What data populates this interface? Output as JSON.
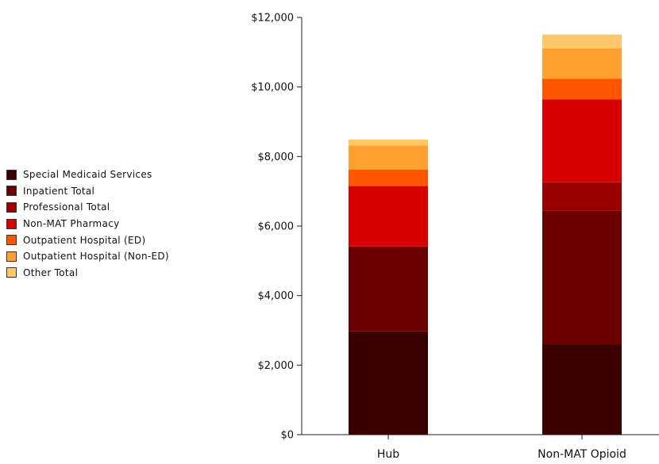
{
  "chart_data": {
    "type": "bar",
    "stacked": true,
    "categories": [
      "Hub",
      "Non-MAT Opioid"
    ],
    "series": [
      {
        "name": "Special Medicaid Services",
        "color": "#3a0000",
        "values": [
          2970,
          2600
        ]
      },
      {
        "name": "Inpatient Total",
        "color": "#6b0000",
        "values": [
          2440,
          3840
        ]
      },
      {
        "name": "Professional Total",
        "color": "#9b0000",
        "values": [
          0,
          820
        ]
      },
      {
        "name": "Non-MAT Pharmacy",
        "color": "#d60000",
        "values": [
          1740,
          2380
        ]
      },
      {
        "name": "Outpatient Hospital (ED)",
        "color": "#ff5500",
        "values": [
          470,
          600
        ]
      },
      {
        "name": "Outpatient Hospital (Non-ED)",
        "color": "#ffa02f",
        "values": [
          700,
          870
        ]
      },
      {
        "name": "Other Total",
        "color": "#ffc96b",
        "values": [
          170,
          400
        ]
      }
    ],
    "y_ticks": [
      "$0",
      "$2,000",
      "$4,000",
      "$6,000",
      "$8,000",
      "$10,000",
      "$12,000"
    ],
    "ylim": [
      0,
      12000
    ],
    "grid": false,
    "legend_position": "left"
  }
}
